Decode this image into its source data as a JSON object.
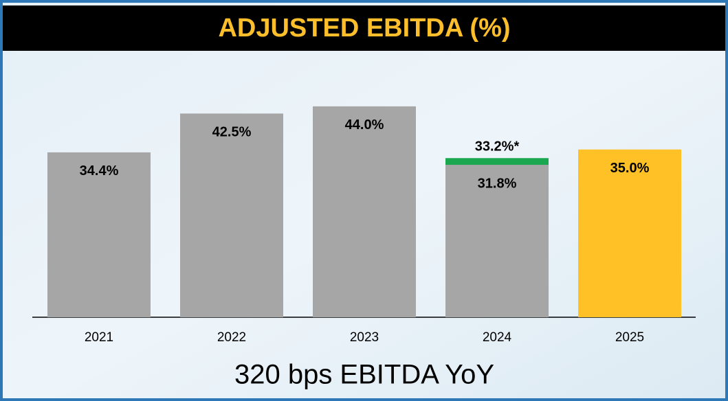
{
  "chart_data": {
    "type": "bar",
    "title": "ADJUSTED EBITDA (%)",
    "annotation": "320 bps EBITDA YoY",
    "categories": [
      "2021",
      "2022",
      "2023",
      "2024",
      "2025"
    ],
    "values": [
      34.4,
      42.5,
      44.0,
      31.8,
      35.0
    ],
    "value_labels": [
      "34.4%",
      "42.5%",
      "44.0%",
      "31.8%",
      "35.0%"
    ],
    "colors": [
      "#a6a6a6",
      "#a6a6a6",
      "#a6a6a6",
      "#a6a6a6",
      "#ffc125"
    ],
    "overlay": {
      "values": [
        null,
        null,
        null,
        33.2,
        null
      ],
      "value_labels": [
        null,
        null,
        null,
        "33.2%*",
        null
      ],
      "color": "#1aa74f"
    },
    "ylim": [
      0,
      50
    ]
  }
}
